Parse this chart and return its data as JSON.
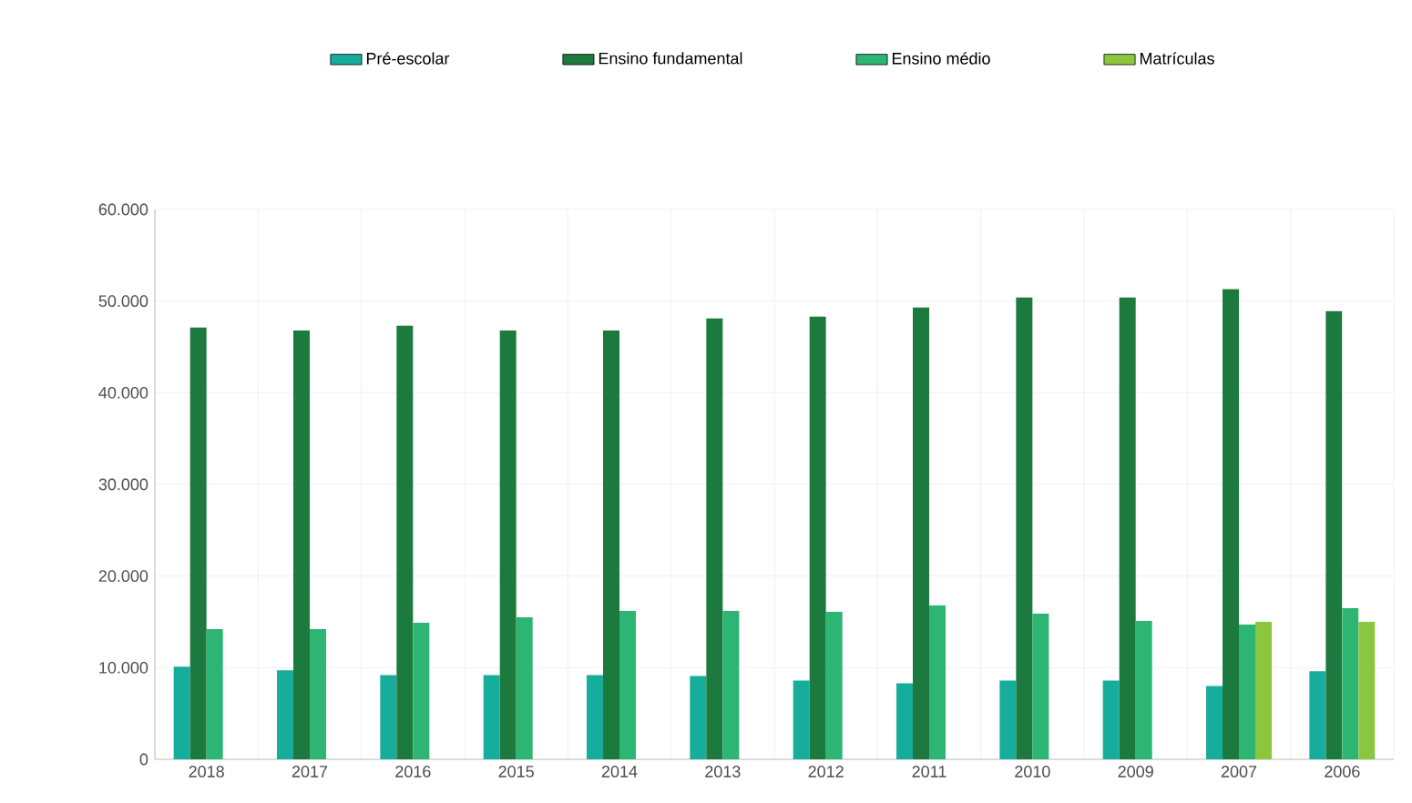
{
  "chart_data": {
    "type": "bar",
    "categories": [
      "2018",
      "2017",
      "2016",
      "2015",
      "2014",
      "2013",
      "2012",
      "2011",
      "2010",
      "2009",
      "2007",
      "2006"
    ],
    "series": [
      {
        "name": "Pré-escolar",
        "color": "#17ad9c",
        "values": [
          10100,
          9700,
          9200,
          9200,
          9200,
          9100,
          8600,
          8300,
          8600,
          8600,
          8000,
          9600
        ]
      },
      {
        "name": "Ensino fundamental",
        "color": "#1d7a3e",
        "values": [
          47100,
          46800,
          47300,
          46800,
          46800,
          48100,
          48300,
          49300,
          50400,
          50400,
          51300,
          48900
        ]
      },
      {
        "name": "Ensino médio",
        "color": "#2cb573",
        "values": [
          14200,
          14200,
          14900,
          15500,
          16200,
          16200,
          16100,
          16800,
          15900,
          15100,
          14700,
          16500
        ]
      },
      {
        "name": "Matrículas",
        "color": "#8cc63f",
        "values": [
          null,
          null,
          null,
          null,
          null,
          null,
          null,
          null,
          null,
          null,
          15000,
          15000
        ]
      }
    ],
    "ylim": [
      0,
      60000
    ],
    "yticks": [
      {
        "value": 0,
        "label": "0"
      },
      {
        "value": 10000,
        "label": "10.000"
      },
      {
        "value": 20000,
        "label": "20.000"
      },
      {
        "value": 30000,
        "label": "30.000"
      },
      {
        "value": 40000,
        "label": "40.000"
      },
      {
        "value": 50000,
        "label": "50.000"
      },
      {
        "value": 60000,
        "label": "60.000"
      }
    ],
    "grid": true,
    "legend": "top"
  }
}
